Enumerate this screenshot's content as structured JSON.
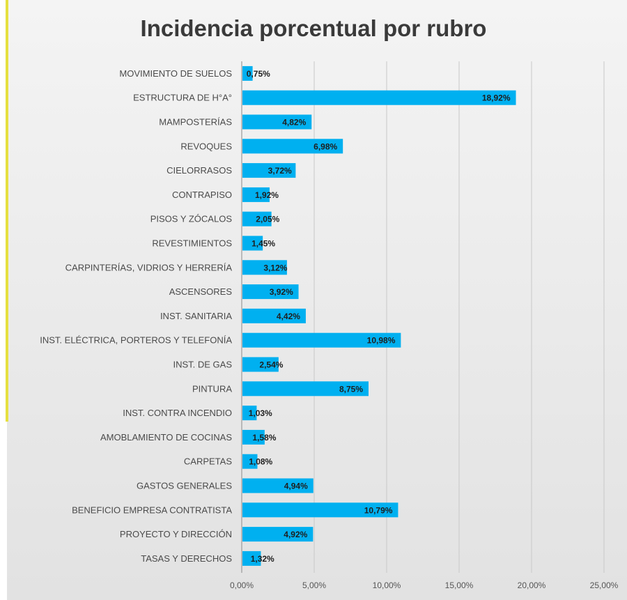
{
  "chart_data": {
    "type": "bar",
    "orientation": "horizontal",
    "title": "Incidencia porcentual por rubro",
    "categories": [
      "MOVIMIENTO DE SUELOS",
      "ESTRUCTURA DE H°A°",
      "MAMPOSTERÍAS",
      "REVOQUES",
      "CIELORRASOS",
      "CONTRAPISO",
      "PISOS Y ZÓCALOS",
      "REVESTIMIENTOS",
      "CARPINTERÍAS, VIDRIOS Y HERRERÍA",
      "ASCENSORES",
      "INST. SANITARIA",
      "INST. ELÉCTRICA, PORTEROS Y TELEFONÍA",
      "INST. DE GAS",
      "PINTURA",
      "INST. CONTRA INCENDIO",
      "AMOBLAMIENTO DE COCINAS",
      "CARPETAS",
      "GASTOS GENERALES",
      "BENEFICIO EMPRESA CONTRATISTA",
      "PROYECTO Y DIRECCIÓN",
      "TASAS Y DERECHOS"
    ],
    "values": [
      0.75,
      18.92,
      4.82,
      6.98,
      3.72,
      1.92,
      2.05,
      1.45,
      3.12,
      3.92,
      4.42,
      10.98,
      2.54,
      8.75,
      1.03,
      1.58,
      1.08,
      4.94,
      10.79,
      4.92,
      1.32
    ],
    "value_labels": [
      "0,75%",
      "18,92%",
      "4,82%",
      "6,98%",
      "3,72%",
      "1,92%",
      "2,05%",
      "1,45%",
      "3,12%",
      "3,92%",
      "4,42%",
      "10,98%",
      "2,54%",
      "8,75%",
      "1,03%",
      "1,58%",
      "1,08%",
      "4,94%",
      "10,79%",
      "4,92%",
      "1,32%"
    ],
    "xlim": [
      0,
      25
    ],
    "xticks": [
      0,
      5,
      10,
      15,
      20,
      25
    ],
    "xtick_labels": [
      "0,00%",
      "5,00%",
      "10,00%",
      "15,00%",
      "20,00%",
      "25,00%"
    ],
    "xlabel": "",
    "ylabel": "",
    "grid": true,
    "legend": "none",
    "colors": {
      "bar": "#00B0F0",
      "grid": "#c8c8c8",
      "axis": "#9a9a9a",
      "accent": "#e6e040"
    }
  }
}
